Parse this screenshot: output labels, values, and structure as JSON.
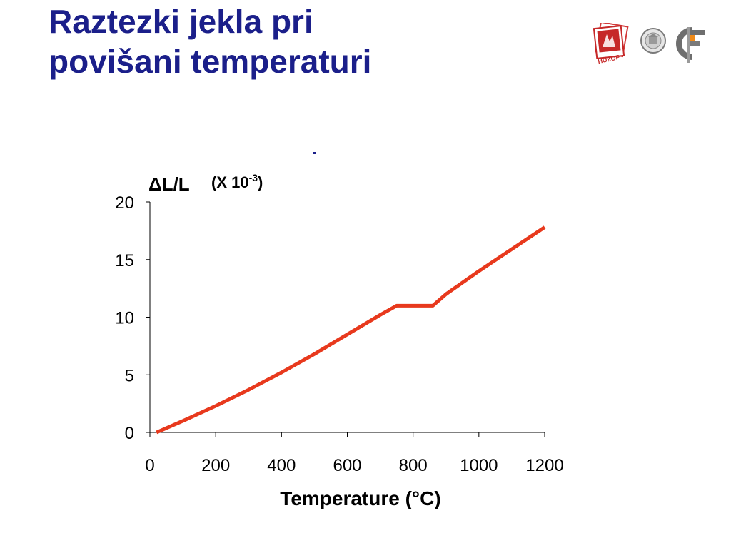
{
  "slide": {
    "title_line1": "Raztezki jekla pri",
    "title_line2": "povišani temperaturi",
    "title_color": "#1b1f8a"
  },
  "logos": {
    "left_logo_text": "HUZOP",
    "left_logo_icon": "huzop-logo-icon",
    "seal_icon": "university-seal-icon",
    "right_logo_icon": "gf-logo-icon"
  },
  "chart_data": {
    "type": "line",
    "xlabel": "Temperature (°C)",
    "ylabel": "ΔL/L",
    "ylabel_unit_prefix": "(X 10",
    "ylabel_unit_exp": "-3",
    "ylabel_unit_suffix": ")",
    "xlim": [
      0,
      1200
    ],
    "ylim": [
      0,
      20
    ],
    "x_ticks": [
      0,
      200,
      400,
      600,
      800,
      1000,
      1200
    ],
    "y_ticks": [
      0,
      5,
      10,
      15,
      20
    ],
    "x_tick_labels": [
      "0",
      "200",
      "400",
      "600",
      "800",
      "1000",
      "1200"
    ],
    "y_tick_labels": [
      "0",
      "5",
      "10",
      "15",
      "20"
    ],
    "grid": false,
    "line_color": "#e8391d",
    "series": [
      {
        "x": [
          20,
          100,
          200,
          300,
          400,
          500,
          600,
          700,
          750,
          860,
          900,
          1000,
          1100,
          1200
        ],
        "y": [
          0,
          1.0,
          2.3,
          3.7,
          5.2,
          6.8,
          8.5,
          10.2,
          11.0,
          11.0,
          12.0,
          14.0,
          15.9,
          17.8
        ]
      }
    ]
  }
}
